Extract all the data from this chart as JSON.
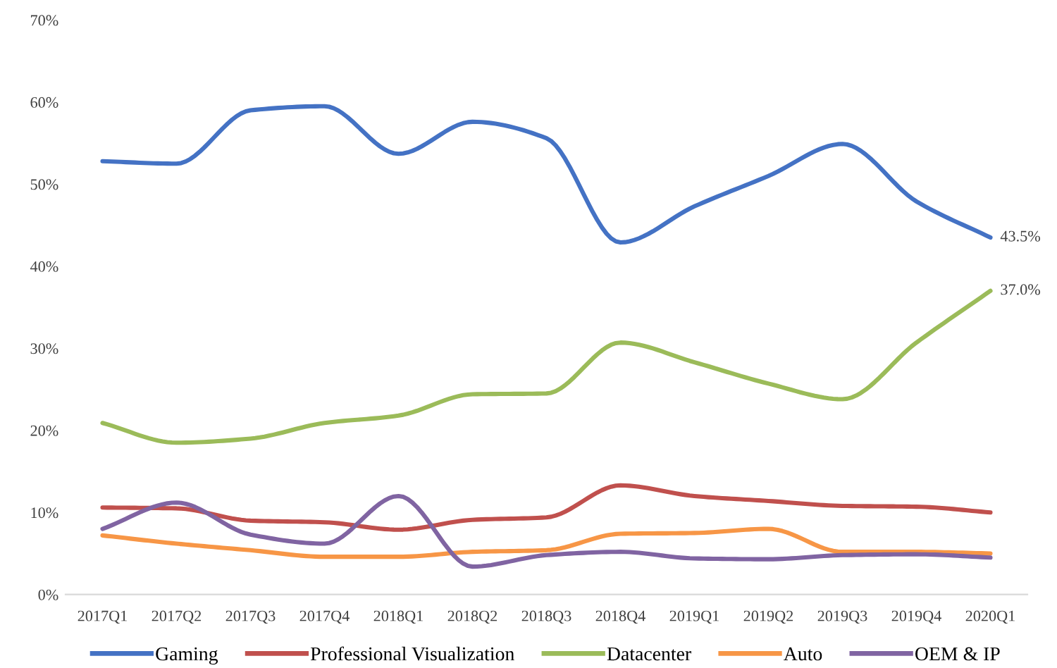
{
  "chart_data": {
    "type": "line",
    "categories": [
      "2017Q1",
      "2017Q2",
      "2017Q3",
      "2017Q4",
      "2018Q1",
      "2018Q2",
      "2018Q3",
      "2018Q4",
      "2019Q1",
      "2019Q2",
      "2019Q3",
      "2019Q4",
      "2020Q1"
    ],
    "series": [
      {
        "name": "Gaming",
        "color": "#4472c4",
        "values": [
          52.8,
          52.5,
          59.0,
          59.5,
          53.7,
          57.6,
          55.6,
          42.9,
          47.3,
          51.0,
          54.9,
          47.9,
          43.5
        ]
      },
      {
        "name": "Professional Visualization",
        "color": "#c0504d",
        "values": [
          10.6,
          10.5,
          9.0,
          8.8,
          7.9,
          9.1,
          9.4,
          13.3,
          12.0,
          11.4,
          10.8,
          10.7,
          10.0
        ]
      },
      {
        "name": "Datacenter",
        "color": "#9bbb59",
        "values": [
          20.9,
          18.5,
          19.0,
          20.9,
          21.8,
          24.4,
          24.5,
          30.7,
          28.3,
          25.7,
          23.8,
          30.7,
          37.0
        ]
      },
      {
        "name": "Auto",
        "color": "#f79646",
        "values": [
          7.2,
          6.2,
          5.4,
          4.6,
          4.6,
          5.2,
          5.4,
          7.4,
          7.5,
          8.0,
          5.2,
          5.2,
          5.0
        ]
      },
      {
        "name": "OEM & IP",
        "color": "#8064a2",
        "values": [
          8.0,
          11.2,
          7.3,
          6.2,
          12.0,
          3.4,
          4.8,
          5.2,
          4.4,
          4.3,
          4.8,
          4.9,
          4.5
        ]
      }
    ],
    "ylim": [
      0,
      70
    ],
    "yticks": [
      {
        "value": 0,
        "label": "0%"
      },
      {
        "value": 10,
        "label": "10%"
      },
      {
        "value": 20,
        "label": "20%"
      },
      {
        "value": 30,
        "label": "30%"
      },
      {
        "value": 40,
        "label": "40%"
      },
      {
        "value": 50,
        "label": "50%"
      },
      {
        "value": 60,
        "label": "60%"
      },
      {
        "value": 70,
        "label": "70%"
      }
    ],
    "annotations": [
      {
        "text": "43.5%",
        "x": "2020Q1",
        "y": 43.5
      },
      {
        "text": "37.0%",
        "x": "2020Q1",
        "y": 37.0
      }
    ],
    "legend": "bottom",
    "grid": false,
    "marker": "none",
    "line_style": "solid"
  }
}
